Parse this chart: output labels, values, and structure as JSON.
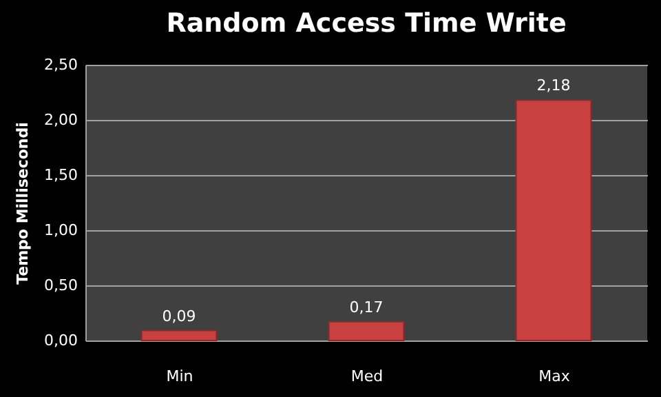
{
  "chart_data": {
    "type": "bar",
    "title": "Random Access Time Write",
    "ylabel": "Tempo Millisecondi",
    "categories": [
      "Min",
      "Med",
      "Max"
    ],
    "values": [
      0.09,
      0.17,
      2.18
    ],
    "color": "#c94040",
    "value_labels": [
      "0,09",
      "0,17",
      "2,18"
    ],
    "ylim": [
      0,
      2.5
    ],
    "yticks": [
      {
        "value": 0,
        "label": "0,00"
      },
      {
        "value": 0.5,
        "label": "0,50"
      },
      {
        "value": 1,
        "label": "1,00"
      },
      {
        "value": 1.5,
        "label": "1,50"
      },
      {
        "value": 2,
        "label": "2,00"
      },
      {
        "value": 2.5,
        "label": "2,50"
      }
    ],
    "grid": "y"
  }
}
